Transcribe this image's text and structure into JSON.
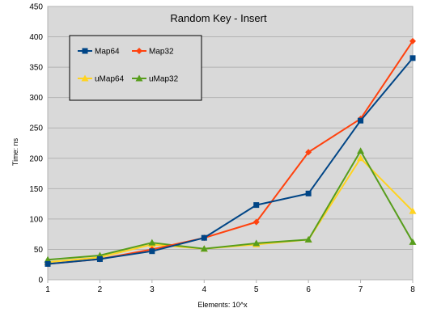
{
  "chart_data": {
    "type": "line",
    "title": "Random Key - Insert",
    "xlabel": "Elements: 10^x",
    "ylabel": "Time: ns",
    "x": [
      1,
      2,
      3,
      4,
      5,
      6,
      7,
      8
    ],
    "xlim": [
      1,
      8
    ],
    "ylim": [
      0,
      450
    ],
    "yticks": [
      0,
      50,
      100,
      150,
      200,
      250,
      300,
      350,
      400,
      450
    ],
    "grid": true,
    "legend_position": "top-left",
    "series": [
      {
        "name": "Map64",
        "color": "#004586",
        "marker": "square",
        "values": [
          26,
          34,
          47,
          69,
          123,
          142,
          262,
          365
        ]
      },
      {
        "name": "Map32",
        "color": "#ff420e",
        "marker": "diamond",
        "values": [
          26,
          34,
          50,
          69,
          95,
          210,
          265,
          393
        ]
      },
      {
        "name": "uMap64",
        "color": "#ffd320",
        "marker": "triangle",
        "values": [
          29,
          37,
          58,
          51,
          58,
          66,
          200,
          113
        ]
      },
      {
        "name": "uMap32",
        "color": "#579d1c",
        "marker": "triangle",
        "values": [
          33,
          40,
          61,
          51,
          60,
          66,
          212,
          62
        ]
      }
    ]
  }
}
